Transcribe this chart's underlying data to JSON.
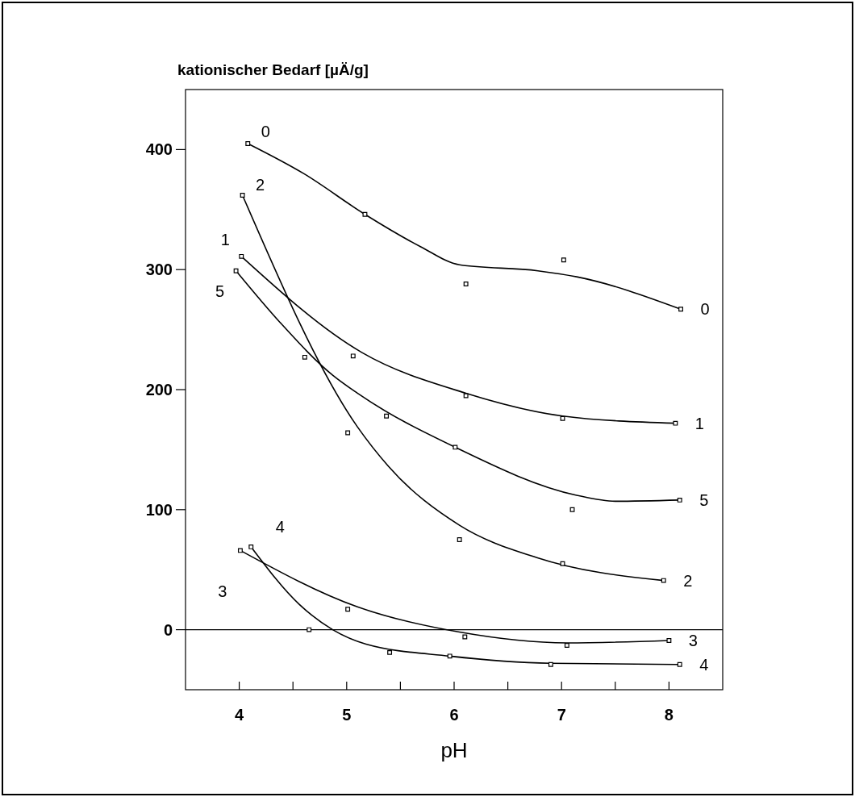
{
  "chart_data": {
    "type": "line",
    "xlabel": "pH",
    "ylabel": "kationischer Bedarf [µÄ/g]",
    "xlim": [
      3.5,
      8.5
    ],
    "ylim": [
      -50,
      450
    ],
    "xticks": [
      4,
      {
        "value": 4.5,
        "label": null
      },
      5,
      {
        "value": 5.5,
        "label": null
      },
      6,
      {
        "value": 6.5,
        "label": null
      },
      7,
      {
        "value": 7.5,
        "label": null
      },
      8
    ],
    "yticks": [
      0,
      100,
      200,
      300,
      400
    ],
    "grid": false,
    "ref_lines": [
      {
        "axis": "y",
        "value": 0,
        "color": "#000000"
      }
    ],
    "series": [
      {
        "name": "0",
        "color": "#000000",
        "marker": "none",
        "x": [
          4.08,
          4.6,
          5.17,
          5.69,
          6.05,
          6.78,
          7.14,
          8.11
        ],
        "values": [
          405,
          380,
          346,
          319,
          304,
          299,
          294,
          267
        ]
      },
      {
        "type": "scatter",
        "color": "#000000",
        "marker": "square",
        "x": [
          4.08,
          5.17,
          6.11,
          7.02,
          8.11
        ],
        "values": [
          405,
          346,
          288,
          308,
          267
        ]
      },
      {
        "name": "2",
        "color": "#000000",
        "marker": "none",
        "x": [
          4.03,
          5.1,
          5.39,
          6.05,
          6.77,
          7.95
        ],
        "values": [
          362,
          169,
          136,
          87,
          60,
          41
        ]
      },
      {
        "type": "scatter",
        "color": "#000000",
        "marker": "square",
        "x": [
          4.03,
          5.01,
          6.05,
          7.01,
          7.95
        ],
        "values": [
          362,
          164,
          75,
          55,
          41
        ]
      },
      {
        "name": "1",
        "color": "#000000",
        "marker": "none",
        "x": [
          4.02,
          5.14,
          6.11,
          7.01,
          8.06
        ],
        "values": [
          311,
          231,
          197,
          178,
          172
        ]
      },
      {
        "type": "scatter",
        "color": "#000000",
        "marker": "square",
        "x": [
          4.02,
          5.06,
          6.11,
          7.01,
          8.06
        ],
        "values": [
          311,
          228,
          195,
          176,
          172
        ]
      },
      {
        "name": "5",
        "color": "#000000",
        "marker": "none",
        "x": [
          3.97,
          4.38,
          4.87,
          5.1,
          6.01,
          7.14,
          7.5,
          8.1
        ],
        "values": [
          299,
          256,
          212,
          197,
          152,
          112,
          107,
          108
        ]
      },
      {
        "type": "scatter",
        "color": "#000000",
        "marker": "square",
        "x": [
          3.97,
          4.61,
          5.37,
          6.01,
          7.1,
          8.1
        ],
        "values": [
          299,
          227,
          178,
          152,
          100,
          108
        ]
      },
      {
        "name": "4",
        "color": "#000000",
        "marker": "none",
        "x": [
          4.11,
          4.56,
          4.87,
          5.18,
          5.96,
          6.9,
          8.1
        ],
        "values": [
          69,
          21,
          0,
          -12,
          -22,
          -28,
          -29
        ]
      },
      {
        "type": "scatter",
        "color": "#000000",
        "marker": "square",
        "x": [
          4.11,
          4.65,
          5.4,
          5.96,
          6.9,
          8.1
        ],
        "values": [
          69,
          0,
          -19,
          -22,
          -29,
          -29
        ]
      },
      {
        "name": "3",
        "color": "#000000",
        "marker": "none",
        "x": [
          4.01,
          5.1,
          6.05,
          7.05,
          8.0
        ],
        "values": [
          66,
          19,
          -2,
          -11,
          -9
        ]
      },
      {
        "type": "scatter",
        "color": "#000000",
        "marker": "square",
        "x": [
          4.01,
          5.01,
          6.1,
          7.05,
          8.0
        ],
        "values": [
          66,
          17,
          -6,
          -13,
          -9
        ]
      }
    ]
  }
}
